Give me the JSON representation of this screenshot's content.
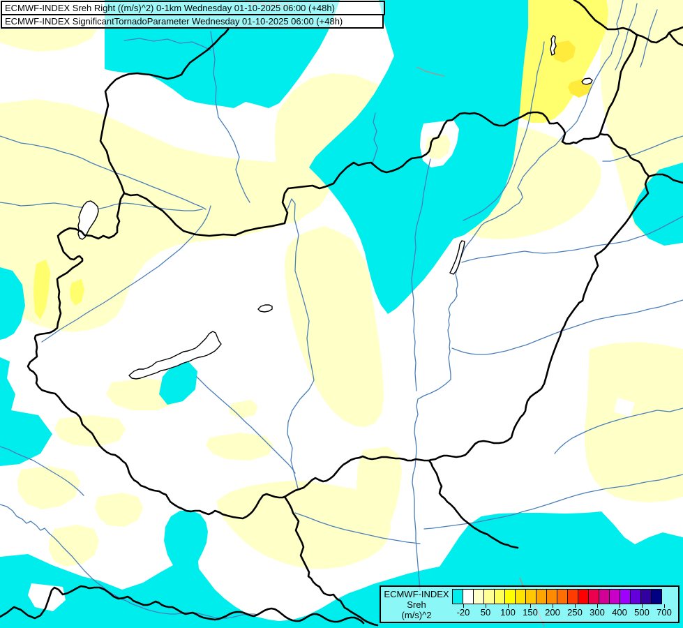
{
  "header": {
    "line1": "ECMWF-INDEX Sreh Right ((m/s)^2) 0-1km Wednesday 01-10-2025 06:00 (+48h)",
    "line2": "ECMWF-INDEX SignificantTornadoParameter Wednesday 01-10-2025 06:00 (+48h)"
  },
  "legend": {
    "product": "ECMWF-INDEX",
    "parameter": "Sreh",
    "units": "(m/s)^2",
    "ticks": [
      "-20",
      "50",
      "100",
      "150",
      "200",
      "250",
      "300",
      "400",
      "500",
      "700"
    ],
    "colors": [
      "#00EDED",
      "#FFFFFF",
      "#FFFFC8",
      "#FFFF96",
      "#FFFF5A",
      "#FFFF00",
      "#FFE400",
      "#FFC800",
      "#FFA500",
      "#FF8C00",
      "#FF6E00",
      "#FF3C00",
      "#FF0000",
      "#EB0050",
      "#D20096",
      "#C800C8",
      "#A000FF",
      "#6400DC",
      "#3200A0",
      "#000082"
    ]
  },
  "map": {
    "colors": {
      "white": "#FFFFFF",
      "pale_yellow": "#FFFFC8",
      "yellow": "#FFFF6E",
      "gold": "#FFEB3C",
      "cyan": "#00EDED",
      "river": "#4A7EB8",
      "gray_line": "#9A9A9A",
      "border": "#000000",
      "lake_fill": "#FFFFFF"
    }
  }
}
